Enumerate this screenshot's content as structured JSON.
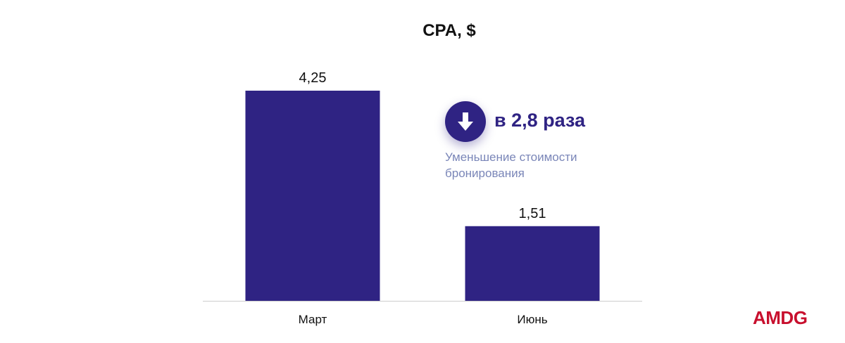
{
  "colors": {
    "bar": "#2f2383",
    "axis": "#cccccc",
    "note_text": "#7a86b8",
    "brand": "#c8102e",
    "text": "#111111"
  },
  "chart_data": {
    "type": "bar",
    "title": "CPA, $",
    "categories": [
      "Март",
      "Июнь"
    ],
    "values": [
      4.25,
      1.51
    ],
    "value_labels": [
      "4,25",
      "1,51"
    ],
    "xlabel": "",
    "ylabel": "",
    "ylim": [
      0,
      4.25
    ],
    "grid": false,
    "legend": "none",
    "annotation": {
      "icon": "arrow-down-icon",
      "headline": "в 2,8 раза",
      "text": "Уменьшение стоимости бронирования"
    }
  },
  "brand": {
    "logo_text": "AMDG"
  }
}
